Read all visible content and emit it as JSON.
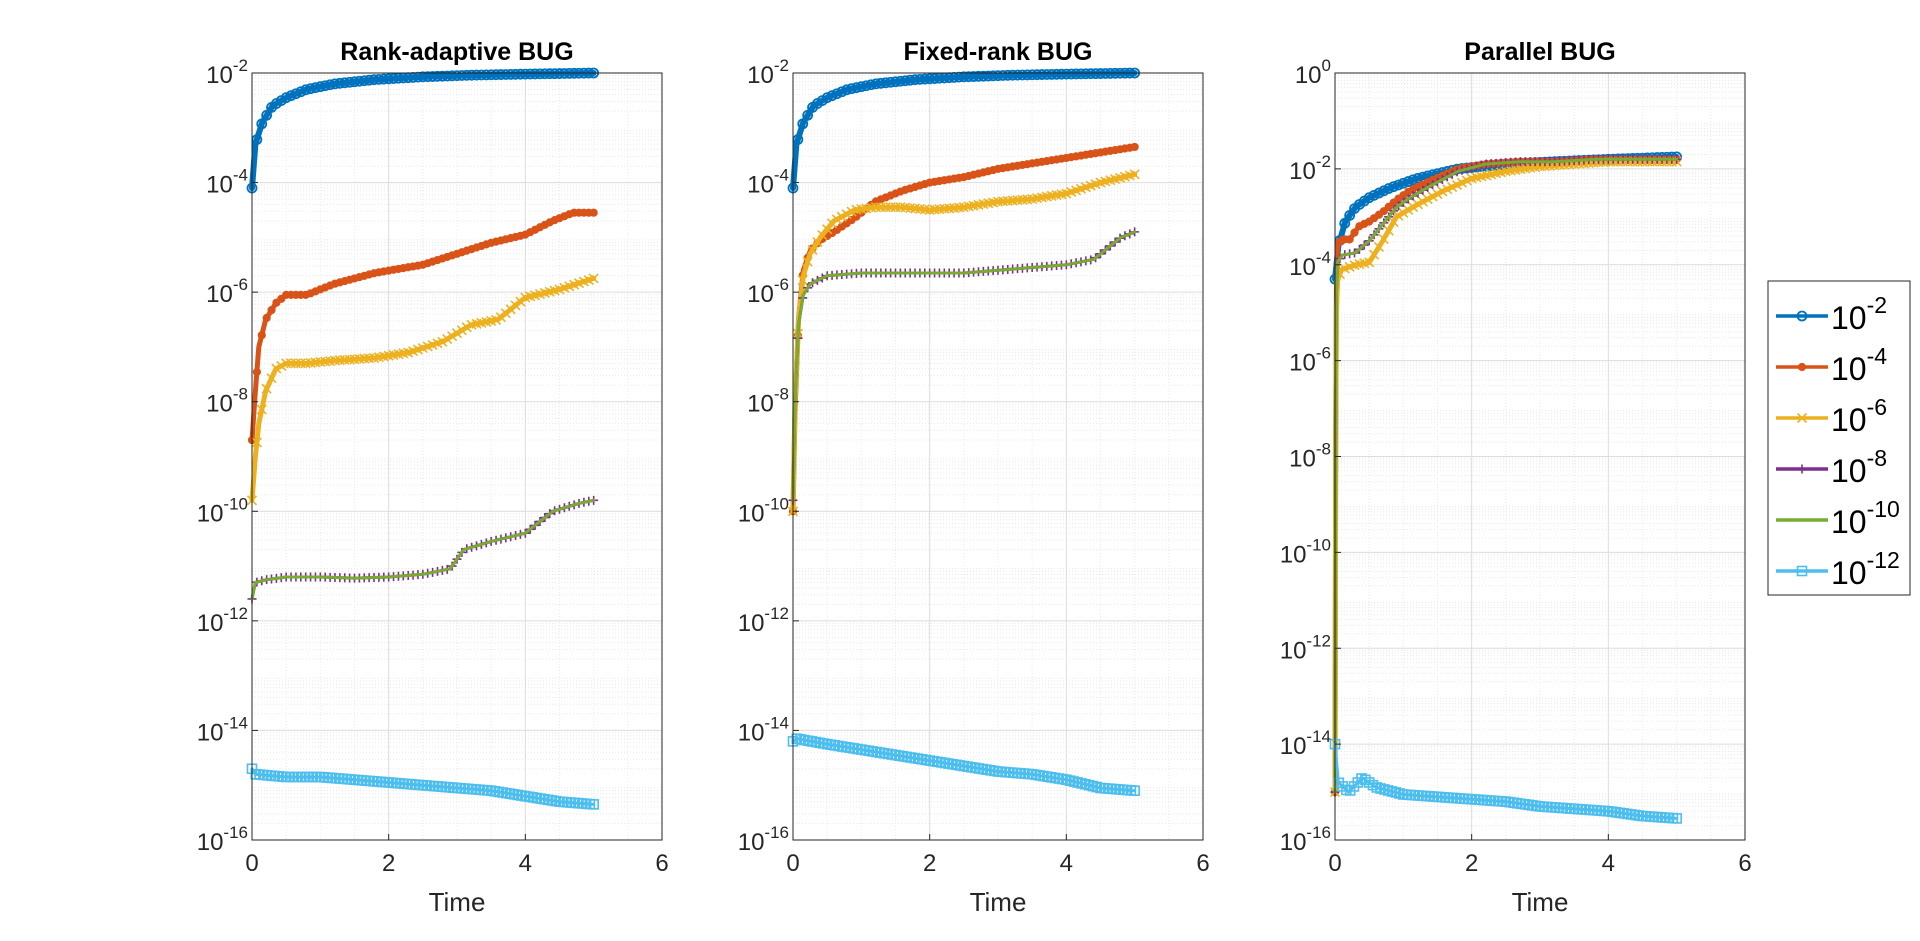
{
  "chart_data": [
    {
      "type": "line",
      "title": "Rank-adaptive BUG",
      "xlabel": "Time",
      "ylabel": "",
      "xlim": [
        0,
        6
      ],
      "ylim_log10": [
        -16,
        -2
      ],
      "yscale": "log",
      "xticks": [
        "0",
        "2",
        "4",
        "6"
      ],
      "yticks": [
        -16,
        -14,
        -12,
        -10,
        -8,
        -6,
        -4,
        -2
      ],
      "grid": true,
      "series": [
        {
          "name": "10-2",
          "x": [
            0,
            0.05,
            0.15,
            0.3,
            0.5,
            0.8,
            1.2,
            1.8,
            2.5,
            3.2,
            4.0,
            5.0
          ],
          "log10y": [
            -4.1,
            -3.3,
            -2.9,
            -2.6,
            -2.45,
            -2.3,
            -2.2,
            -2.12,
            -2.07,
            -2.04,
            -2.02,
            -2.0
          ]
        },
        {
          "name": "10-4",
          "x": [
            0,
            0.05,
            0.1,
            0.2,
            0.35,
            0.5,
            0.8,
            1.2,
            1.8,
            2.5,
            3.0,
            3.5,
            4.0,
            4.4,
            4.7,
            5.0
          ],
          "log10y": [
            -8.7,
            -7.8,
            -7.0,
            -6.5,
            -6.2,
            -6.05,
            -6.05,
            -5.85,
            -5.65,
            -5.5,
            -5.3,
            -5.1,
            -4.95,
            -4.7,
            -4.55,
            -4.55
          ]
        },
        {
          "name": "10-6",
          "x": [
            0,
            0.05,
            0.1,
            0.2,
            0.35,
            0.5,
            0.8,
            1.2,
            1.8,
            2.3,
            2.8,
            3.2,
            3.6,
            4.0,
            4.5,
            5.0
          ],
          "log10y": [
            -9.8,
            -9.0,
            -8.4,
            -7.8,
            -7.4,
            -7.3,
            -7.3,
            -7.25,
            -7.2,
            -7.1,
            -6.9,
            -6.6,
            -6.5,
            -6.1,
            -5.95,
            -5.75
          ]
        },
        {
          "name": "10-8",
          "x": [
            0,
            0.05,
            0.2,
            0.5,
            1.0,
            1.5,
            2.0,
            2.5,
            2.9,
            3.1,
            3.5,
            4.0,
            4.4,
            4.8,
            5.0
          ],
          "log10y": [
            -11.6,
            -11.3,
            -11.25,
            -11.2,
            -11.2,
            -11.22,
            -11.2,
            -11.15,
            -11.05,
            -10.7,
            -10.55,
            -10.4,
            -10.0,
            -9.85,
            -9.8
          ]
        },
        {
          "name": "10-10",
          "x": [
            0,
            0.05,
            0.2,
            0.5,
            1.0,
            1.5,
            2.0,
            2.5,
            2.9,
            3.1,
            3.5,
            4.0,
            4.4,
            4.8,
            5.0
          ],
          "log10y": [
            -11.6,
            -11.3,
            -11.25,
            -11.2,
            -11.2,
            -11.22,
            -11.2,
            -11.15,
            -11.05,
            -10.7,
            -10.55,
            -10.4,
            -10.0,
            -9.85,
            -9.8
          ]
        },
        {
          "name": "10-12",
          "x": [
            0,
            0.05,
            0.5,
            1.0,
            1.5,
            2.0,
            2.5,
            3.0,
            3.5,
            4.0,
            4.5,
            5.0
          ],
          "log10y": [
            -14.7,
            -14.8,
            -14.85,
            -14.85,
            -14.9,
            -14.95,
            -15.0,
            -15.05,
            -15.1,
            -15.2,
            -15.3,
            -15.35
          ]
        }
      ]
    },
    {
      "type": "line",
      "title": "Fixed-rank BUG",
      "xlabel": "Time",
      "ylabel": "",
      "xlim": [
        0,
        6
      ],
      "ylim_log10": [
        -16,
        -2
      ],
      "yscale": "log",
      "xticks": [
        "0",
        "2",
        "4",
        "6"
      ],
      "yticks": [
        -16,
        -14,
        -12,
        -10,
        -8,
        -6,
        -4,
        -2
      ],
      "grid": true,
      "series": [
        {
          "name": "10-2",
          "x": [
            0,
            0.05,
            0.15,
            0.3,
            0.5,
            0.8,
            1.2,
            1.8,
            2.5,
            3.2,
            4.0,
            5.0
          ],
          "log10y": [
            -4.1,
            -3.3,
            -2.9,
            -2.6,
            -2.45,
            -2.3,
            -2.2,
            -2.12,
            -2.07,
            -2.04,
            -2.02,
            -2.0
          ]
        },
        {
          "name": "10-4",
          "x": [
            0,
            0.03,
            0.08,
            0.15,
            0.25,
            0.4,
            0.6,
            0.9,
            1.2,
            1.6,
            2.0,
            2.5,
            3.0,
            3.5,
            4.0,
            4.5,
            5.0
          ],
          "log10y": [
            -10.0,
            -8.2,
            -6.5,
            -5.6,
            -5.25,
            -5.05,
            -4.9,
            -4.65,
            -4.35,
            -4.15,
            -4.0,
            -3.9,
            -3.75,
            -3.65,
            -3.55,
            -3.45,
            -3.35
          ]
        },
        {
          "name": "10-6",
          "x": [
            0,
            0.03,
            0.08,
            0.15,
            0.25,
            0.4,
            0.6,
            0.9,
            1.2,
            1.6,
            2.0,
            2.5,
            3.0,
            3.5,
            4.0,
            4.5,
            5.0
          ],
          "log10y": [
            -10.0,
            -8.0,
            -6.5,
            -5.7,
            -5.3,
            -5.0,
            -4.7,
            -4.5,
            -4.45,
            -4.45,
            -4.5,
            -4.45,
            -4.35,
            -4.3,
            -4.2,
            -4.0,
            -3.85
          ]
        },
        {
          "name": "10-8",
          "x": [
            0,
            0.03,
            0.08,
            0.15,
            0.25,
            0.5,
            1.0,
            1.5,
            2.0,
            2.5,
            3.0,
            3.5,
            4.0,
            4.4,
            4.8,
            5.0
          ],
          "log10y": [
            -9.8,
            -8.0,
            -6.6,
            -6.05,
            -5.85,
            -5.7,
            -5.65,
            -5.65,
            -5.65,
            -5.65,
            -5.6,
            -5.55,
            -5.5,
            -5.4,
            -5.0,
            -4.9
          ]
        },
        {
          "name": "10-10",
          "x": [
            0,
            0.03,
            0.08,
            0.15,
            0.25,
            0.5,
            1.0,
            1.5,
            2.0,
            2.5,
            3.0,
            3.5,
            4.0,
            4.4,
            4.8,
            5.0
          ],
          "log10y": [
            -9.8,
            -8.0,
            -6.6,
            -6.05,
            -5.85,
            -5.7,
            -5.65,
            -5.65,
            -5.65,
            -5.65,
            -5.6,
            -5.55,
            -5.5,
            -5.4,
            -5.0,
            -4.9
          ]
        },
        {
          "name": "10-12",
          "x": [
            0,
            0.05,
            0.5,
            1.0,
            1.5,
            2.0,
            2.5,
            3.0,
            3.5,
            4.0,
            4.5,
            5.0
          ],
          "log10y": [
            -14.2,
            -14.15,
            -14.25,
            -14.35,
            -14.45,
            -14.55,
            -14.65,
            -14.75,
            -14.8,
            -14.9,
            -15.05,
            -15.1
          ]
        }
      ]
    },
    {
      "type": "line",
      "title": "Parallel BUG",
      "xlabel": "Time",
      "ylabel": "",
      "xlim": [
        0,
        6
      ],
      "ylim_log10": [
        -16,
        0
      ],
      "yscale": "log",
      "xticks": [
        "0",
        "2",
        "4",
        "6"
      ],
      "yticks": [
        -16,
        -14,
        -12,
        -10,
        -8,
        -6,
        -4,
        -2,
        0
      ],
      "grid": true,
      "series": [
        {
          "name": "10-2",
          "x": [
            0,
            0.05,
            0.15,
            0.3,
            0.5,
            0.8,
            1.2,
            1.8,
            2.5,
            3.2,
            4.0,
            5.0
          ],
          "log10y": [
            -4.3,
            -3.6,
            -3.1,
            -2.8,
            -2.6,
            -2.4,
            -2.2,
            -2.0,
            -1.9,
            -1.85,
            -1.8,
            -1.75
          ]
        },
        {
          "name": "10-4",
          "x": [
            0,
            0.005,
            0.01,
            0.02,
            0.04,
            0.1,
            0.2,
            0.35,
            0.5,
            0.7,
            0.9,
            1.1,
            1.4,
            1.8,
            2.2,
            2.7,
            3.2,
            3.8,
            4.5,
            5.0
          ],
          "log10y": [
            -15.0,
            -12.0,
            -7.5,
            -4.5,
            -3.6,
            -3.45,
            -3.5,
            -3.2,
            -3.1,
            -2.9,
            -2.65,
            -2.45,
            -2.25,
            -2.0,
            -1.9,
            -1.85,
            -1.85,
            -1.8,
            -1.8,
            -1.8
          ]
        },
        {
          "name": "10-6",
          "x": [
            0,
            0.005,
            0.01,
            0.02,
            0.04,
            0.1,
            0.3,
            0.5,
            0.7,
            0.9,
            1.2,
            1.6,
            2.0,
            2.5,
            3.0,
            3.5,
            4.0,
            4.5,
            5.0
          ],
          "log10y": [
            -15.0,
            -12.0,
            -7.5,
            -5.0,
            -4.3,
            -4.1,
            -4.0,
            -3.95,
            -3.5,
            -3.0,
            -2.75,
            -2.45,
            -2.2,
            -2.05,
            -1.95,
            -1.9,
            -1.85,
            -1.85,
            -1.85
          ]
        },
        {
          "name": "10-8",
          "x": [
            0,
            0.005,
            0.01,
            0.02,
            0.04,
            0.1,
            0.3,
            0.5,
            0.7,
            0.9,
            1.1,
            1.4,
            1.8,
            2.2,
            2.7,
            3.2,
            3.8,
            4.5,
            5.0
          ],
          "log10y": [
            -15.0,
            -12.0,
            -7.5,
            -4.6,
            -3.95,
            -3.8,
            -3.75,
            -3.5,
            -3.15,
            -2.8,
            -2.6,
            -2.35,
            -2.05,
            -1.9,
            -1.85,
            -1.85,
            -1.8,
            -1.8,
            -1.8
          ]
        },
        {
          "name": "10-10",
          "x": [
            0,
            0.005,
            0.01,
            0.02,
            0.04,
            0.1,
            0.3,
            0.5,
            0.7,
            0.9,
            1.1,
            1.4,
            1.8,
            2.2,
            2.7,
            3.2,
            3.8,
            4.5,
            5.0
          ],
          "log10y": [
            -15.0,
            -12.0,
            -7.5,
            -4.6,
            -3.95,
            -3.8,
            -3.75,
            -3.5,
            -3.15,
            -2.8,
            -2.6,
            -2.35,
            -2.05,
            -1.9,
            -1.85,
            -1.85,
            -1.8,
            -1.8,
            -1.8
          ]
        },
        {
          "name": "10-12",
          "x": [
            0,
            0.05,
            0.2,
            0.4,
            0.6,
            1.0,
            1.5,
            2.0,
            2.5,
            3.0,
            3.5,
            4.0,
            4.5,
            5.0
          ],
          "log10y": [
            -14.0,
            -14.8,
            -15.0,
            -14.7,
            -14.9,
            -15.05,
            -15.1,
            -15.15,
            -15.2,
            -15.3,
            -15.35,
            -15.4,
            -15.5,
            -15.55
          ]
        }
      ]
    }
  ],
  "legend": {
    "placement": "right",
    "entries": [
      {
        "base": "10",
        "exp": "-2",
        "color": "#0072BD",
        "marker": "circle"
      },
      {
        "base": "10",
        "exp": "-4",
        "color": "#D95319",
        "marker": "dot"
      },
      {
        "base": "10",
        "exp": "-6",
        "color": "#EDB120",
        "marker": "x"
      },
      {
        "base": "10",
        "exp": "-8",
        "color": "#7E2F8E",
        "marker": "plus"
      },
      {
        "base": "10",
        "exp": "-10",
        "color": "#77AC30",
        "marker": "none"
      },
      {
        "base": "10",
        "exp": "-12",
        "color": "#4DBEEE",
        "marker": "square"
      }
    ]
  },
  "colors": {
    "s1": "#0072BD",
    "s2": "#D95319",
    "s3": "#EDB120",
    "s4": "#7E2F8E",
    "s5": "#77AC30",
    "s6": "#4DBEEE",
    "axis": "#262626",
    "grid": "#dcdcdc"
  }
}
